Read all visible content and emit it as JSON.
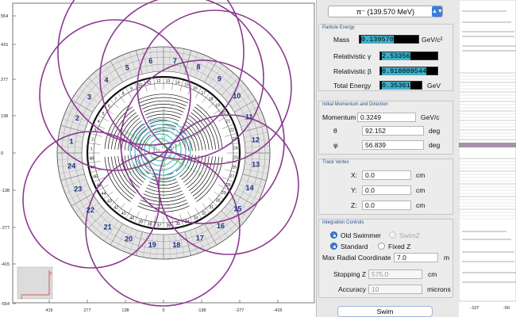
{
  "plot": {
    "y_ticks": [
      "554",
      "415",
      "277",
      "138",
      "0",
      "-138",
      "-277",
      "-415",
      "-554"
    ],
    "x_ticks": [
      "415",
      "277",
      "138",
      "0",
      "-138",
      "-277",
      "-415"
    ],
    "outer_sectors": [
      "1",
      "2",
      "3",
      "4",
      "5",
      "6",
      "7",
      "8",
      "9",
      "10",
      "11",
      "12",
      "13",
      "14",
      "15",
      "16",
      "17",
      "18",
      "19",
      "20",
      "21",
      "22",
      "23",
      "24"
    ],
    "inner_labels": [
      "1",
      "2",
      "3",
      "4",
      "5",
      "6",
      "7",
      "8",
      "9",
      "10",
      "11",
      "12",
      "13",
      "14",
      "15",
      "16",
      "17",
      "18",
      "19",
      "20",
      "21",
      "22",
      "23",
      "24",
      "25",
      "26",
      "27",
      "28",
      "29",
      "30",
      "31",
      "32",
      "33",
      "34",
      "35",
      "36",
      "37",
      "38",
      "39",
      "40",
      "41",
      "42",
      "43",
      "44",
      "45",
      "46",
      "47",
      "48"
    ],
    "core_labels": [
      "13",
      "12",
      "11",
      "10",
      "9",
      "8",
      "7",
      "6",
      "5",
      "4",
      "3",
      "2",
      "1"
    ],
    "axis_icon": {
      "x": "x",
      "y": "y"
    }
  },
  "panel": {
    "particle": "π⁻ (139.570 MeV)",
    "particle_energy": {
      "title": "Particle Energy",
      "mass_label": "Mass",
      "mass_value": "0.139570",
      "mass_unit": "GeV/c²",
      "gamma_label": "Relativistic γ",
      "gamma_value": "2.53356",
      "beta_label": "Relativistic β",
      "beta_value": "0.918809544",
      "total_label": "Total Energy",
      "total_value": "0.35361",
      "total_unit": "GeV"
    },
    "momentum": {
      "title": "Initial Momentum and Direction",
      "p_label": "Momentum",
      "p_value": "0.3249",
      "p_unit": "GeV/c",
      "theta_label": "θ",
      "theta_value": "92.152",
      "theta_unit": "deg",
      "phi_label": "φ",
      "phi_value": "56.839",
      "phi_unit": "deg"
    },
    "vertex": {
      "title": "Track Vertex",
      "x_label": "X:",
      "x_value": "0.0",
      "x_unit": "cm",
      "y_label": "Y:",
      "y_value": "0.0",
      "y_unit": "cm",
      "z_label": "Z:",
      "z_value": "0.0",
      "z_unit": "cm"
    },
    "integration": {
      "title": "Integration Controls",
      "old_swimmer": "Old Swimmer",
      "swimz": "SwimZ",
      "standard": "Standard",
      "fixedz": "Fixed Z",
      "maxr_label": "Max Radial Coordinate",
      "maxr_value": "7.0",
      "maxr_unit": "m",
      "stopz_label": "Stopping Z",
      "stopz_value": "575.0",
      "stopz_unit": "cm",
      "acc_label": "Accuracy",
      "acc_value": "10",
      "acc_unit": "microns"
    },
    "swim_label": "Swim"
  },
  "right": {
    "x_ticks": [
      "-107",
      "-50"
    ]
  },
  "colors": {
    "track": "#8b3a8f",
    "accent": "#3b7de0",
    "sector_label": "#1a2f8a",
    "core": "#6ec6d8",
    "core_label": "#2a9a2a"
  }
}
